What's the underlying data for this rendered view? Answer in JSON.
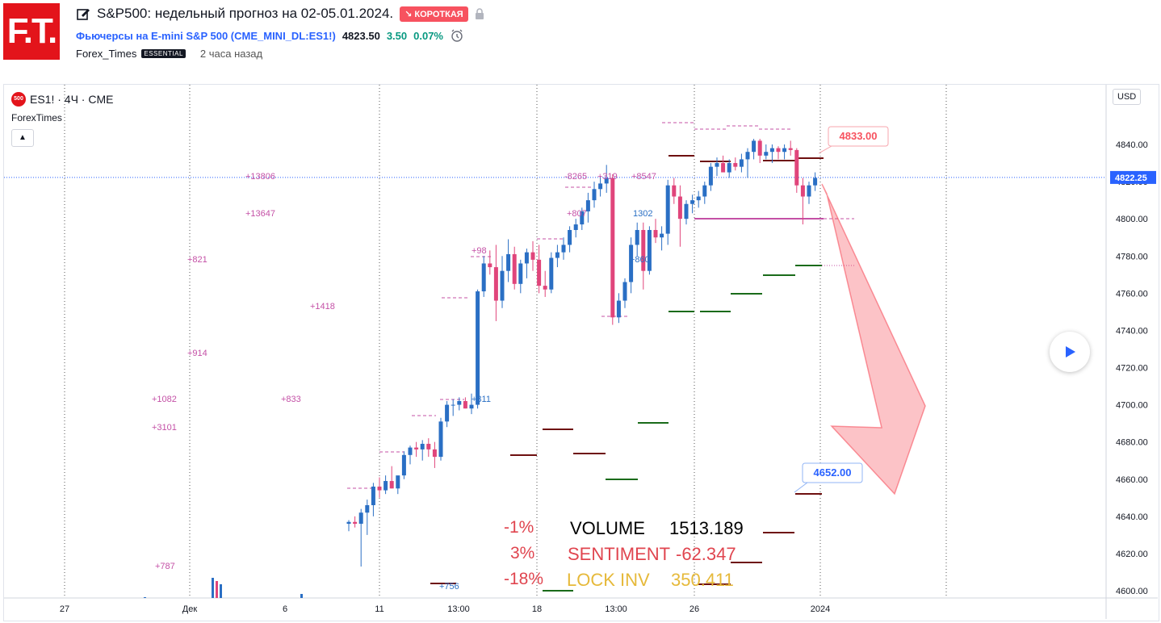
{
  "header": {
    "logo_text": "F.T.",
    "title": "S&P500: недельный прогноз на 02-05.01.2024.",
    "badge": "↘ КОРОТКАЯ",
    "symbol_link": "Фьючерсы на E-mini S&P 500 (CME_MINI_DL:ES1!)",
    "price": "4823.50",
    "change": "3.50",
    "change_pct": "0.07%",
    "author": "Forex_Times",
    "author_badge": "ESSENTIAL",
    "time_ago": "2 часа назад"
  },
  "chart": {
    "symbol": "ES1! · 4Ч · CME",
    "symbol_icon": "500",
    "indicator": "ForexTimes",
    "currency": "USD",
    "price_ticks": [
      "4840.00",
      "4820.00",
      "4800.00",
      "4780.00",
      "4760.00",
      "4740.00",
      "4720.00",
      "4700.00",
      "4680.00",
      "4660.00",
      "4640.00",
      "4620.00",
      "4600.00"
    ],
    "current_price": "4822.25",
    "time_ticks": [
      "27",
      "Дек",
      "6",
      "11",
      "13:00",
      "18",
      "13:00",
      "26",
      "2024"
    ],
    "callout_high": "4833.00",
    "callout_low": "4652.00",
    "volume_labels": [
      "+13806",
      "+13647",
      "+821",
      "+1418",
      "+914",
      "+1082",
      "+833",
      "+3101",
      "+787",
      "+98",
      "+811",
      "+807",
      "-8265",
      "+319",
      "+8547",
      "1302",
      "+860",
      "+756"
    ],
    "stats": {
      "pct1": "-1%",
      "pct2": "3%",
      "pct3": "-18%",
      "volume_label": "VOLUME",
      "volume_value": "1513.189",
      "sentiment_label": "SENTIMENT",
      "sentiment_value": "-62.347",
      "lockinv_label": "LOCK INV",
      "lockinv_value": "350.411"
    },
    "colors": {
      "up": "#2a6fc4",
      "down": "#e0457b",
      "short": "#f7525f",
      "dark_red": "#6e0f0f",
      "green": "#1a6b1a",
      "magenta": "#c450a6",
      "gold": "#e6b93a"
    }
  }
}
